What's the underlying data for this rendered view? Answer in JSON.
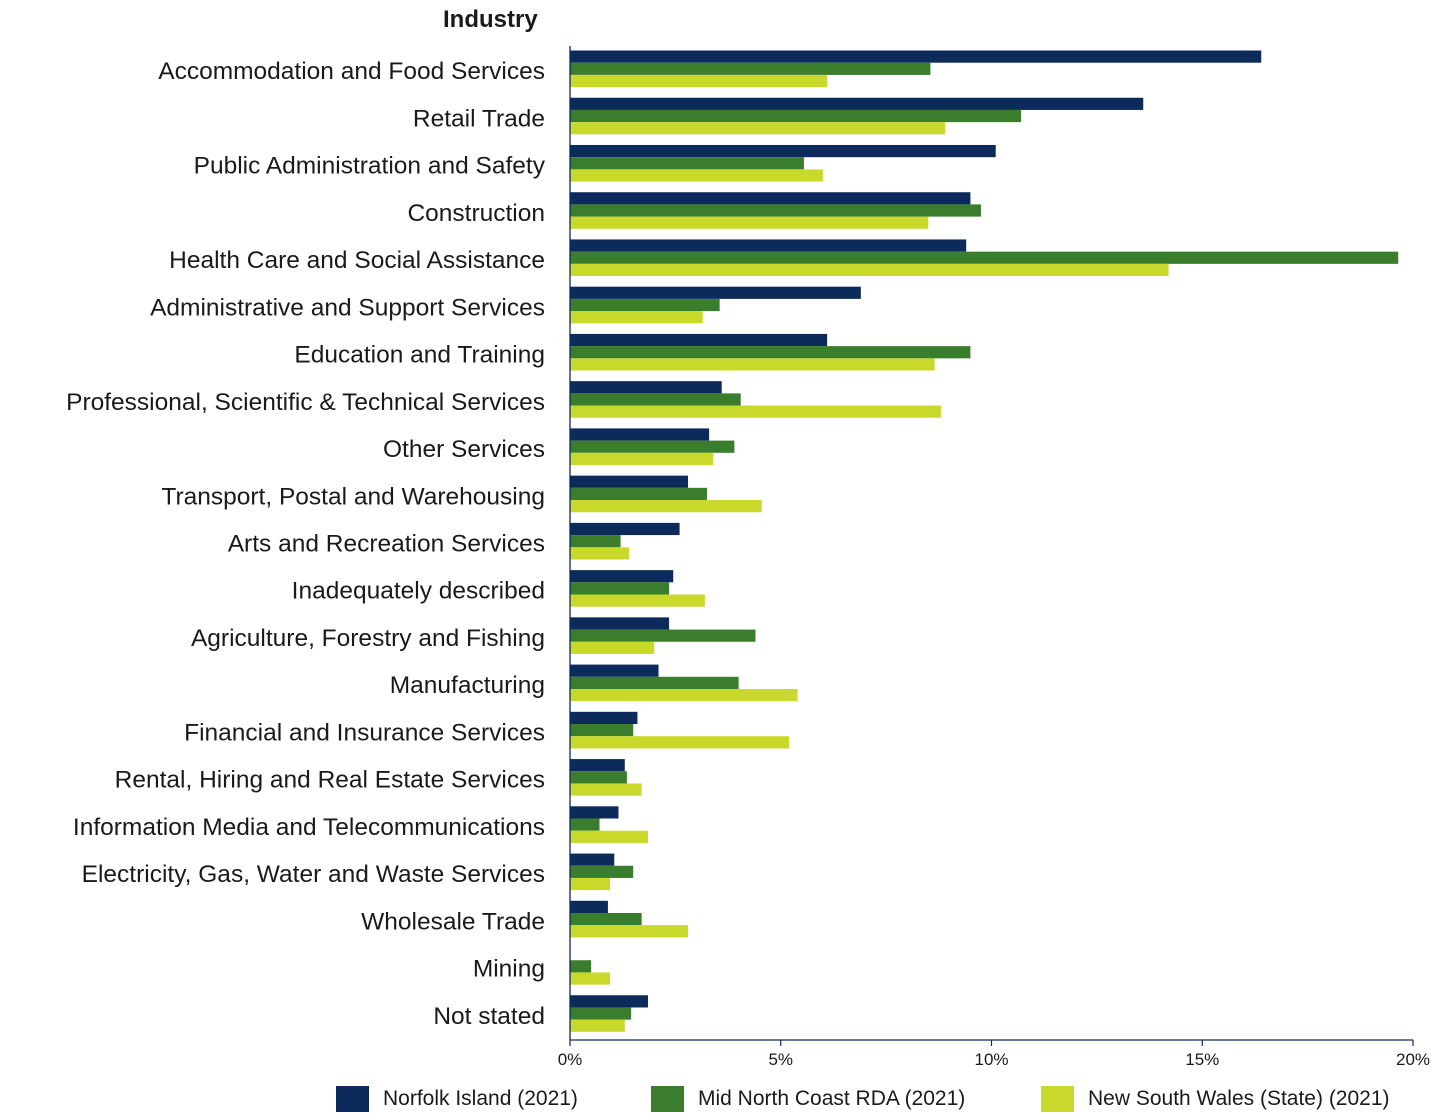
{
  "chart_data": {
    "type": "bar",
    "orientation": "horizontal",
    "category_axis_title": "Industry",
    "categories": [
      "Accommodation and Food Services",
      "Retail Trade",
      "Public Administration and Safety",
      "Construction",
      "Health Care and Social Assistance",
      "Administrative and Support Services",
      "Education and Training",
      "Professional, Scientific & Technical Services",
      "Other Services",
      "Transport, Postal and Warehousing",
      "Arts and Recreation Services",
      "Inadequately described",
      "Agriculture, Forestry and Fishing",
      "Manufacturing",
      "Financial and Insurance Services",
      "Rental, Hiring and Real Estate Services",
      "Information Media and Telecommunications",
      "Electricity, Gas, Water and Waste Services",
      "Wholesale Trade",
      "Mining",
      "Not stated"
    ],
    "series": [
      {
        "name": "Norfolk Island (2021)",
        "color": "#0d2b5a",
        "values": [
          16.4,
          13.6,
          10.1,
          9.5,
          9.4,
          6.9,
          6.1,
          3.6,
          3.3,
          2.8,
          2.6,
          2.45,
          2.35,
          2.1,
          1.6,
          1.3,
          1.15,
          1.05,
          0.9,
          0.0,
          1.85
        ]
      },
      {
        "name": "Mid North Coast RDA (2021)",
        "color": "#3a7d2c",
        "values": [
          8.55,
          10.7,
          5.55,
          9.75,
          19.65,
          3.55,
          9.5,
          4.05,
          3.9,
          3.25,
          1.2,
          2.35,
          4.4,
          4.0,
          1.5,
          1.35,
          0.7,
          1.5,
          1.7,
          0.5,
          1.45
        ]
      },
      {
        "name": "New South Wales (State) (2021)",
        "color": "#c8d92b",
        "values": [
          6.1,
          8.9,
          6.0,
          8.5,
          14.2,
          3.15,
          8.65,
          8.8,
          3.4,
          4.55,
          1.4,
          3.2,
          2.0,
          5.4,
          5.2,
          1.7,
          1.85,
          0.95,
          2.8,
          0.95,
          1.3
        ]
      }
    ],
    "x_axis": {
      "min": 0,
      "max": 20,
      "ticks": [
        0,
        5,
        10,
        15,
        20
      ],
      "tick_labels": [
        "0%",
        "5%",
        "10%",
        "15%",
        "20%"
      ]
    },
    "grid": false,
    "legend_position": "bottom"
  }
}
